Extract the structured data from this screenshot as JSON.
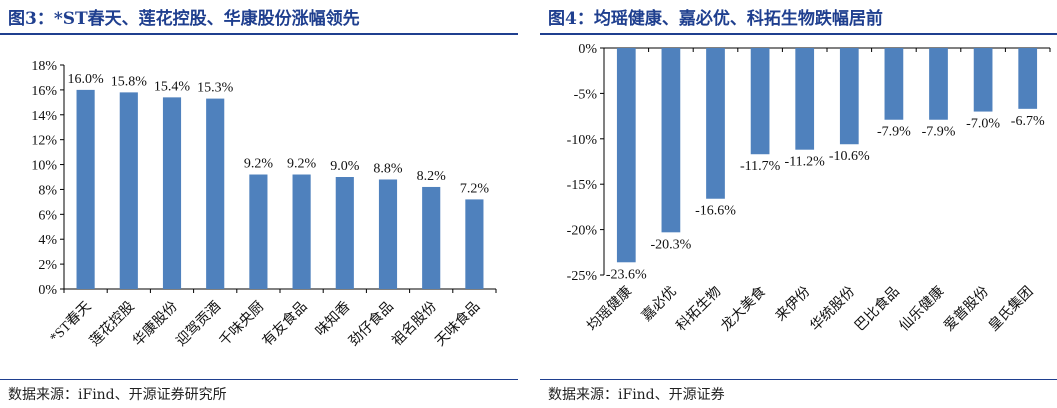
{
  "charts": [
    {
      "title": "图3：*ST春天、莲花控股、华康股份涨幅领先",
      "source": "数据来源：iFind、开源证券研究所"
    },
    {
      "title": "图4：均瑶健康、嘉必优、科拓生物跌幅居前",
      "source": "数据来源：iFind、开源证券"
    }
  ],
  "chart_data": [
    {
      "type": "bar",
      "title": "图3：*ST春天、莲花控股、华康股份涨幅领先",
      "categories": [
        "*ST春天",
        "莲花控股",
        "华康股份",
        "迎驾贡酒",
        "千味央厨",
        "有友食品",
        "味知香",
        "劲仔食品",
        "祖名股份",
        "天味食品"
      ],
      "values": [
        16.0,
        15.8,
        15.4,
        15.3,
        9.2,
        9.2,
        9.0,
        8.8,
        8.2,
        7.2
      ],
      "value_labels": [
        "16.0%",
        "15.8%",
        "15.4%",
        "15.3%",
        "9.2%",
        "9.2%",
        "9.0%",
        "8.8%",
        "8.2%",
        "7.2%"
      ],
      "yticks": [
        "0%",
        "2%",
        "4%",
        "6%",
        "8%",
        "10%",
        "12%",
        "14%",
        "16%",
        "18%"
      ],
      "ylim": [
        0,
        18
      ],
      "unit": "%",
      "color": "#4f81bd",
      "grid": false,
      "xlabel": "",
      "ylabel": ""
    },
    {
      "type": "bar",
      "title": "图4：均瑶健康、嘉必优、科拓生物跌幅居前",
      "categories": [
        "均瑶健康",
        "嘉必优",
        "科拓生物",
        "龙大美食",
        "来伊份",
        "华统股份",
        "巴比食品",
        "仙乐健康",
        "爱普股份",
        "皇氏集团"
      ],
      "values": [
        -23.6,
        -20.3,
        -16.6,
        -11.7,
        -11.2,
        -10.6,
        -7.9,
        -7.9,
        -7.0,
        -6.7
      ],
      "value_labels": [
        "-23.6%",
        "-20.3%",
        "-16.6%",
        "-11.7%",
        "-11.2%",
        "-10.6%",
        "-7.9%",
        "-7.9%",
        "-7.0%",
        "-6.7%"
      ],
      "yticks": [
        "0%",
        "-5%",
        "-10%",
        "-15%",
        "-20%",
        "-25%"
      ],
      "ylim": [
        -25,
        0
      ],
      "unit": "%",
      "color": "#4f81bd",
      "grid": false,
      "xlabel": "",
      "ylabel": ""
    }
  ]
}
